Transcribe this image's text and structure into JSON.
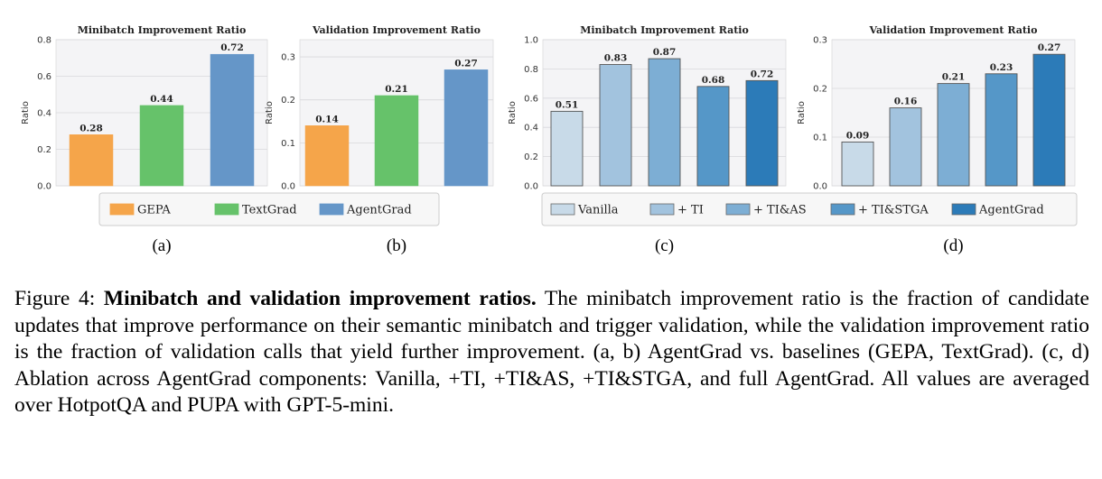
{
  "chart_data": [
    {
      "type": "bar",
      "title": "Minibatch Improvement Ratio",
      "ylabel": "Ratio",
      "categories": [
        "GEPA",
        "TextGrad",
        "AgentGrad"
      ],
      "values": [
        0.28,
        0.44,
        0.72
      ],
      "value_labels": [
        "0.28",
        "0.44",
        "0.72"
      ],
      "colors": [
        "#f5a54a",
        "#66c26a",
        "#6596c8"
      ],
      "ylim": [
        0,
        0.8
      ],
      "yticks": [
        0.0,
        0.2,
        0.4,
        0.6,
        0.8
      ],
      "ytick_labels": [
        "0.0",
        "0.2",
        "0.4",
        "0.6",
        "0.8"
      ],
      "grid": true,
      "panel_label": "(a)"
    },
    {
      "type": "bar",
      "title": "Validation Improvement Ratio",
      "ylabel": "Ratio",
      "categories": [
        "GEPA",
        "TextGrad",
        "AgentGrad"
      ],
      "values": [
        0.14,
        0.21,
        0.27
      ],
      "value_labels": [
        "0.14",
        "0.21",
        "0.27"
      ],
      "colors": [
        "#f5a54a",
        "#66c26a",
        "#6596c8"
      ],
      "ylim": [
        0,
        0.34
      ],
      "yticks": [
        0.0,
        0.1,
        0.2,
        0.3
      ],
      "ytick_labels": [
        "0.0",
        "0.1",
        "0.2",
        "0.3"
      ],
      "grid": true,
      "panel_label": "(b)"
    },
    {
      "type": "bar",
      "title": "Minibatch Improvement Ratio",
      "ylabel": "Ratio",
      "categories": [
        "Vanilla",
        "+ TI",
        "+ TI&AS",
        "+ TI&STGA",
        "AgentGrad"
      ],
      "values": [
        0.51,
        0.83,
        0.87,
        0.68,
        0.72
      ],
      "value_labels": [
        "0.51",
        "0.83",
        "0.87",
        "0.68",
        "0.72"
      ],
      "colors": [
        "#c8dae8",
        "#a2c3de",
        "#7daed4",
        "#5597c8",
        "#2c7bb8"
      ],
      "ylim": [
        0,
        1.0
      ],
      "yticks": [
        0.0,
        0.2,
        0.4,
        0.6,
        0.8,
        1.0
      ],
      "ytick_labels": [
        "0.0",
        "0.2",
        "0.4",
        "0.6",
        "0.8",
        "1.0"
      ],
      "grid": true,
      "panel_label": "(c)"
    },
    {
      "type": "bar",
      "title": "Validation Improvement Ratio",
      "ylabel": "Ratio",
      "categories": [
        "Vanilla",
        "+ TI",
        "+ TI&AS",
        "+ TI&STGA",
        "AgentGrad"
      ],
      "values": [
        0.09,
        0.16,
        0.21,
        0.23,
        0.27
      ],
      "value_labels": [
        "0.09",
        "0.16",
        "0.21",
        "0.23",
        "0.27"
      ],
      "colors": [
        "#c8dae8",
        "#a2c3de",
        "#7daed4",
        "#5597c8",
        "#2c7bb8"
      ],
      "ylim": [
        0,
        0.3
      ],
      "yticks": [
        0.0,
        0.1,
        0.2,
        0.3
      ],
      "ytick_labels": [
        "0.0",
        "0.1",
        "0.2",
        "0.3"
      ],
      "grid": true,
      "panel_label": "(d)"
    }
  ],
  "legends": [
    {
      "placement": "bottom-center",
      "entries": [
        {
          "label": "GEPA",
          "color": "#f5a54a"
        },
        {
          "label": "TextGrad",
          "color": "#66c26a"
        },
        {
          "label": "AgentGrad",
          "color": "#6596c8"
        }
      ]
    },
    {
      "placement": "bottom-center",
      "entries": [
        {
          "label": "Vanilla",
          "color": "#c8dae8"
        },
        {
          "label": "+ TI",
          "color": "#a2c3de"
        },
        {
          "label": "+ TI&AS",
          "color": "#7daed4"
        },
        {
          "label": "+ TI&STGA",
          "color": "#5597c8"
        },
        {
          "label": "AgentGrad",
          "color": "#2c7bb8"
        }
      ]
    }
  ],
  "caption": {
    "label": "Figure 4:",
    "bold": "Minibatch and validation improvement ratios.",
    "text": "The minibatch improvement ratio is the fraction of candidate updates that improve performance on their semantic minibatch and trigger validation, while the validation improvement ratio is the fraction of validation calls that yield further improvement. (a, b) AgentGrad vs. baselines (GEPA, TextGrad). (c, d) Ablation across AgentGrad components: Vanilla, +TI, +TI&AS, +TI&STGA, and full AgentGrad. All values are averaged over HotpotQA and PUPA with GPT-5-mini."
  }
}
